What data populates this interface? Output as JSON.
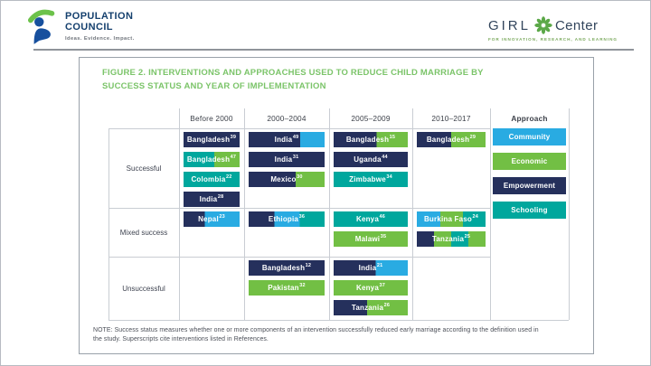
{
  "branding": {
    "population_council": {
      "name_line1": "POPULATION",
      "name_line2": "COUNCIL",
      "tagline": "Ideas. Evidence. Impact."
    },
    "girl_center": {
      "prefix": "GIRL",
      "suffix": "Center",
      "tagline": "FOR INNOVATION, RESEARCH, AND LEARNING"
    }
  },
  "figure": {
    "title": "FIGURE 2. INTERVENTIONS AND APPROACHES USED TO REDUCE CHILD MARRIAGE BY SUCCESS STATUS AND YEAR OF IMPLEMENTATION",
    "note": "NOTE: Success status measures whether one or more components of an intervention successfully reduced early marriage according to the definition used in the study. Superscripts cite interventions listed in References."
  },
  "approach_colors": {
    "Community": "#29abe2",
    "Economic": "#72bf44",
    "Empowerment": "#25305c",
    "Schooling": "#00a79d"
  },
  "chart_data": {
    "type": "table",
    "title": "FIGURE 2. INTERVENTIONS AND APPROACHES USED TO REDUCE CHILD MARRIAGE BY SUCCESS STATUS AND YEAR OF IMPLEMENTATION",
    "columns": [
      "Before 2000",
      "2000–2004",
      "2005–2009",
      "2010–2017"
    ],
    "legend": {
      "header": "Approach",
      "position": "right",
      "items": [
        "Community",
        "Economic",
        "Empowerment",
        "Schooling"
      ]
    },
    "rows": [
      {
        "label": "Successful",
        "cells": [
          [
            {
              "country": "Bangladesh",
              "ref": "39",
              "approaches": [
                {
                  "name": "Empowerment",
                  "pct": 100
                }
              ]
            },
            {
              "country": "Bangladesh",
              "ref": "47",
              "approaches": [
                {
                  "name": "Schooling",
                  "pct": 55
                },
                {
                  "name": "Economic",
                  "pct": 45
                }
              ]
            },
            {
              "country": "Colombia",
              "ref": "22",
              "approaches": [
                {
                  "name": "Schooling",
                  "pct": 100
                }
              ]
            },
            {
              "country": "India",
              "ref": "28",
              "approaches": [
                {
                  "name": "Empowerment",
                  "pct": 100
                }
              ]
            }
          ],
          [
            {
              "country": "India",
              "ref": "49",
              "approaches": [
                {
                  "name": "Empowerment",
                  "pct": 68
                },
                {
                  "name": "Community",
                  "pct": 32
                }
              ]
            },
            {
              "country": "India",
              "ref": "31",
              "approaches": [
                {
                  "name": "Empowerment",
                  "pct": 100
                }
              ]
            },
            {
              "country": "Mexico",
              "ref": "30",
              "approaches": [
                {
                  "name": "Empowerment",
                  "pct": 62
                },
                {
                  "name": "Economic",
                  "pct": 38
                }
              ]
            }
          ],
          [
            {
              "country": "Bangladesh",
              "ref": "15",
              "approaches": [
                {
                  "name": "Empowerment",
                  "pct": 58
                },
                {
                  "name": "Economic",
                  "pct": 42
                }
              ]
            },
            {
              "country": "Uganda",
              "ref": "44",
              "approaches": [
                {
                  "name": "Empowerment",
                  "pct": 100
                }
              ]
            },
            {
              "country": "Zimbabwe",
              "ref": "34",
              "approaches": [
                {
                  "name": "Schooling",
                  "pct": 100
                }
              ]
            }
          ],
          [
            {
              "country": "Bangladesh",
              "ref": "29",
              "approaches": [
                {
                  "name": "Empowerment",
                  "pct": 50
                },
                {
                  "name": "Economic",
                  "pct": 50
                }
              ]
            }
          ]
        ]
      },
      {
        "label": "Mixed success",
        "cells": [
          [
            {
              "country": "Nepal",
              "ref": "23",
              "approaches": [
                {
                  "name": "Empowerment",
                  "pct": 38
                },
                {
                  "name": "Community",
                  "pct": 62
                }
              ]
            }
          ],
          [
            {
              "country": "Ethiopia",
              "ref": "36",
              "approaches": [
                {
                  "name": "Empowerment",
                  "pct": 34
                },
                {
                  "name": "Community",
                  "pct": 33
                },
                {
                  "name": "Schooling",
                  "pct": 33
                }
              ]
            }
          ],
          [
            {
              "country": "Kenya",
              "ref": "46",
              "approaches": [
                {
                  "name": "Schooling",
                  "pct": 100
                }
              ]
            },
            {
              "country": "Malawi",
              "ref": "35",
              "approaches": [
                {
                  "name": "Economic",
                  "pct": 100
                }
              ]
            }
          ],
          [
            {
              "country": "Burkina Faso",
              "ref": "24",
              "approaches": [
                {
                  "name": "Community",
                  "pct": 34
                },
                {
                  "name": "Economic",
                  "pct": 33
                },
                {
                  "name": "Schooling",
                  "pct": 33
                }
              ]
            },
            {
              "country": "Tanzania",
              "ref": "25",
              "approaches": [
                {
                  "name": "Empowerment",
                  "pct": 25
                },
                {
                  "name": "Economic",
                  "pct": 25
                },
                {
                  "name": "Schooling",
                  "pct": 25
                },
                {
                  "name": "Economic",
                  "pct": 25
                }
              ]
            }
          ]
        ]
      },
      {
        "label": "Unsuccessful",
        "cells": [
          [],
          [
            {
              "country": "Bangladesh",
              "ref": "12",
              "approaches": [
                {
                  "name": "Empowerment",
                  "pct": 100
                }
              ]
            },
            {
              "country": "Pakistan",
              "ref": "32",
              "approaches": [
                {
                  "name": "Economic",
                  "pct": 100
                }
              ]
            }
          ],
          [
            {
              "country": "India",
              "ref": "21",
              "approaches": [
                {
                  "name": "Empowerment",
                  "pct": 57
                },
                {
                  "name": "Community",
                  "pct": 43
                }
              ]
            },
            {
              "country": "Kenya",
              "ref": "37",
              "approaches": [
                {
                  "name": "Economic",
                  "pct": 100
                }
              ]
            },
            {
              "country": "Tanzania",
              "ref": "26",
              "approaches": [
                {
                  "name": "Empowerment",
                  "pct": 45
                },
                {
                  "name": "Economic",
                  "pct": 55
                }
              ]
            }
          ],
          []
        ]
      }
    ]
  }
}
